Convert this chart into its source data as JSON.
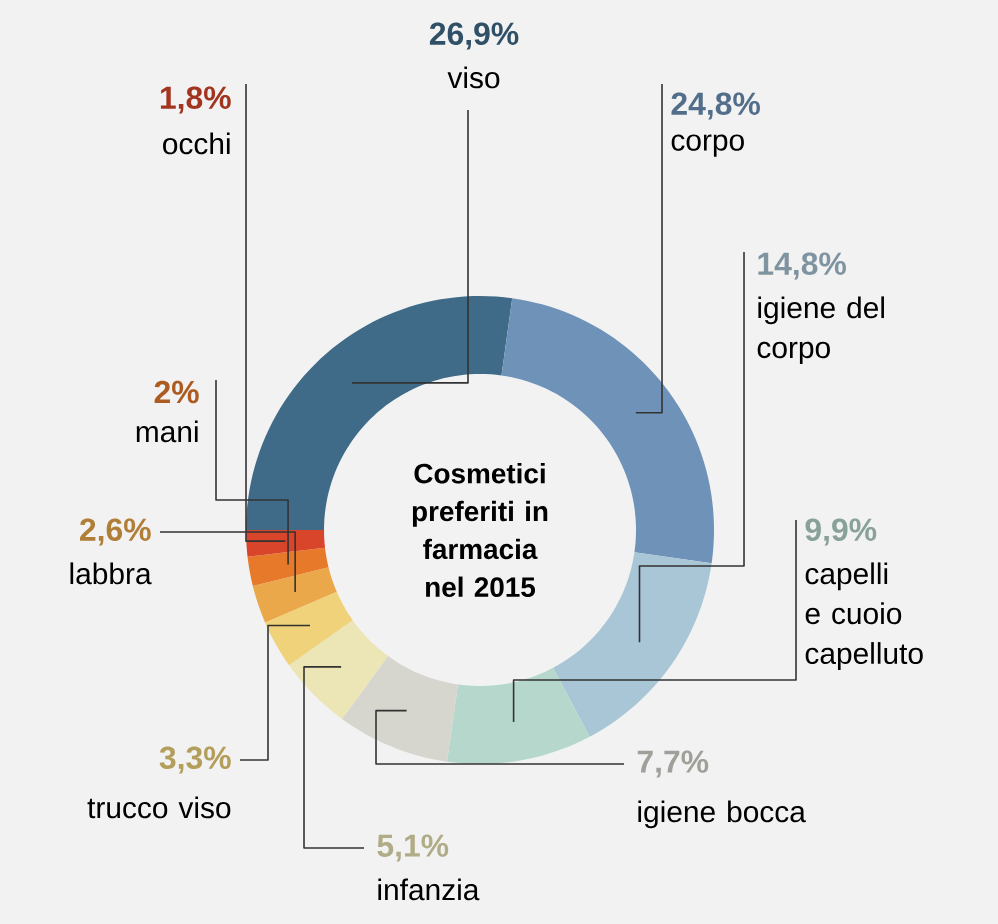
{
  "chart_data": {
    "type": "donut",
    "title": "Cosmetici preferiti in farmacia nel 2015",
    "categories": [
      "viso",
      "corpo",
      "igiene del corpo",
      "capelli e cuoio capelluto",
      "igiene bocca",
      "infanzia",
      "trucco viso",
      "labbra",
      "mani",
      "occhi"
    ],
    "values": [
      26.9,
      24.8,
      14.8,
      9.9,
      7.7,
      5.1,
      3.3,
      2.6,
      2,
      1.8
    ],
    "value_labels": [
      "26,9%",
      "24,8%",
      "14,8%",
      "9,9%",
      "7,7%",
      "5,1%",
      "3,3%",
      "2,6%",
      "2%",
      "1,8%"
    ],
    "colors": [
      "#3f6b88",
      "#6f93b8",
      "#a9c6d6",
      "#b6d8cc",
      "#d6d6cf",
      "#ece6b6",
      "#f0d27a",
      "#eba84a",
      "#e67a2a",
      "#d8452a"
    ]
  }
}
